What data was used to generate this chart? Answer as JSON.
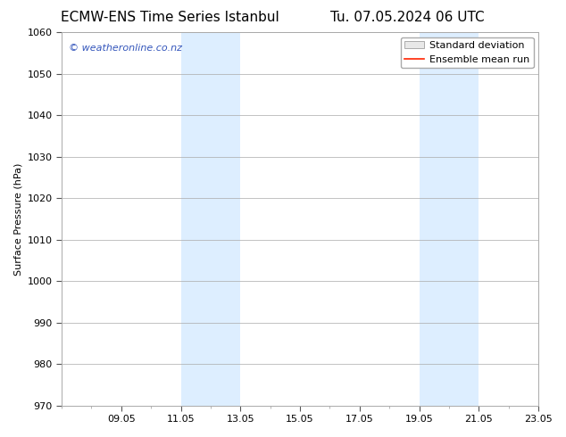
{
  "title_left": "ECMW-ENS Time Series Istanbul",
  "title_right": "Tu. 07.05.2024 06 UTC",
  "ylabel": "Surface Pressure (hPa)",
  "ylim": [
    970,
    1060
  ],
  "yticks": [
    970,
    980,
    990,
    1000,
    1010,
    1020,
    1030,
    1040,
    1050,
    1060
  ],
  "xtick_labels": [
    "09.05",
    "11.05",
    "13.05",
    "15.05",
    "17.05",
    "19.05",
    "21.05",
    "23.05"
  ],
  "xtick_positions": [
    2.0,
    4.0,
    6.0,
    8.0,
    10.0,
    12.0,
    14.0,
    16.0
  ],
  "xlim": [
    0,
    16
  ],
  "shaded_bands": [
    {
      "x_start": 4.0,
      "x_end": 6.0
    },
    {
      "x_start": 12.0,
      "x_end": 14.0
    }
  ],
  "shade_color": "#ddeeff",
  "watermark_text": "© weatheronline.co.nz",
  "watermark_color": "#3355bb",
  "legend_label1": "Standard deviation",
  "legend_label2": "Ensemble mean run",
  "legend_facecolor": "#e8e8e8",
  "legend_linecolor": "#ff2200",
  "background_color": "#ffffff",
  "grid_color": "#aaaaaa",
  "title_fontsize": 11,
  "axis_label_fontsize": 8,
  "tick_fontsize": 8,
  "watermark_fontsize": 8,
  "legend_fontsize": 8
}
